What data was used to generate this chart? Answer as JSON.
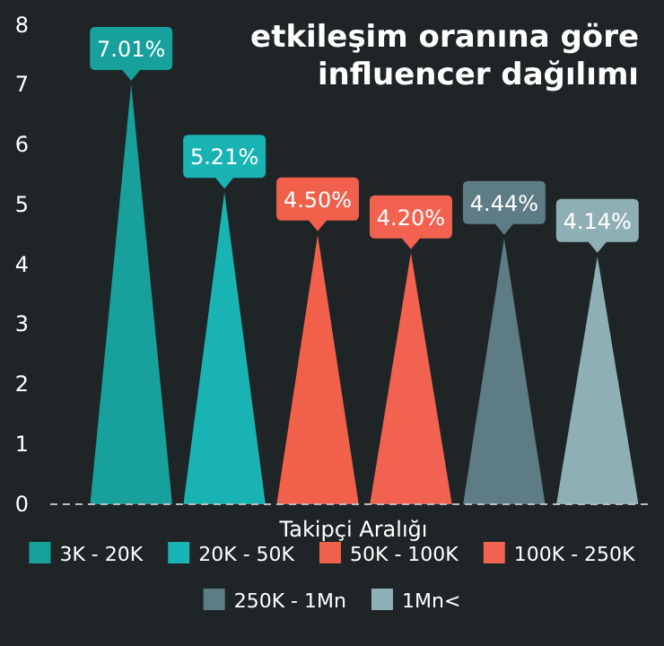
{
  "chart_data": {
    "type": "bar",
    "title": "etkileşim oranına göre influencer dağılımı",
    "xlabel": "Takipçi Aralığı",
    "categories": [
      null,
      null,
      null,
      null,
      null,
      null
    ],
    "series": [
      {
        "name": "3K - 20K",
        "color": "#17a09c",
        "values": [
          7.01,
          null,
          null,
          null,
          null,
          null
        ],
        "value_labels": [
          "7.01%",
          null,
          null,
          null,
          null,
          null
        ]
      },
      {
        "name": "20K - 50K",
        "color": "#1ab3b3",
        "values": [
          null,
          5.21,
          null,
          null,
          null,
          null
        ],
        "value_labels": [
          null,
          "5.21%",
          null,
          null,
          null,
          null
        ]
      },
      {
        "name": "50K - 100K",
        "color": "#f0604b",
        "values": [
          null,
          null,
          4.5,
          null,
          null,
          null
        ],
        "value_labels": [
          null,
          null,
          "4.50%",
          null,
          null,
          null
        ]
      },
      {
        "name": "100K - 250K",
        "color": "#f26250",
        "values": [
          null,
          null,
          null,
          4.2,
          null,
          null
        ],
        "value_labels": [
          null,
          null,
          null,
          "4.20%",
          null,
          null
        ]
      },
      {
        "name": "250K - 1Mn",
        "color": "#5d7c83",
        "values": [
          null,
          null,
          null,
          null,
          4.44,
          null
        ],
        "value_labels": [
          null,
          null,
          null,
          null,
          "4.44%",
          null
        ]
      },
      {
        "name": "1Mn<",
        "color": "#8eb0b5",
        "values": [
          null,
          null,
          null,
          null,
          null,
          4.14
        ],
        "value_labels": [
          null,
          null,
          null,
          null,
          null,
          "4.14%"
        ]
      }
    ],
    "ylim": [
      0,
      8
    ],
    "yticks": [
      0,
      1,
      2,
      3,
      4,
      5,
      6,
      7,
      8
    ],
    "legend": "bottom",
    "tick_labels": "y"
  }
}
